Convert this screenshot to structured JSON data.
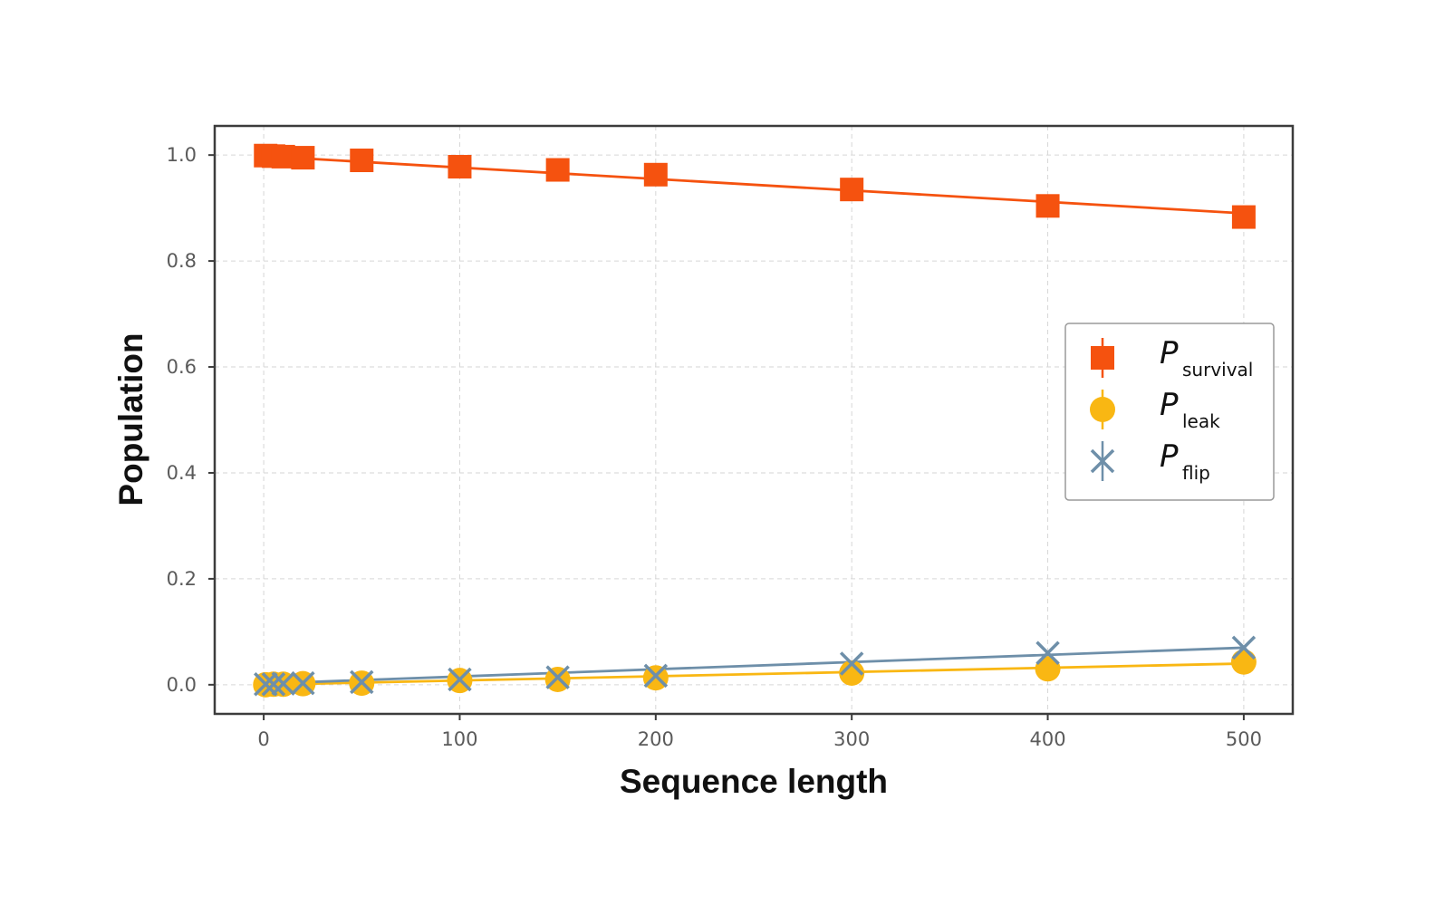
{
  "chart_data": {
    "type": "line",
    "xlabel": "Sequence length",
    "ylabel": "Population",
    "xlim": [
      -25,
      525
    ],
    "ylim": [
      -0.055,
      1.055
    ],
    "xticks": [
      0,
      100,
      200,
      300,
      400,
      500
    ],
    "xtick_labels": [
      "0",
      "100",
      "200",
      "300",
      "400",
      "500"
    ],
    "yticks": [
      0.0,
      0.2,
      0.4,
      0.6,
      0.8,
      1.0
    ],
    "ytick_labels": [
      "0.0",
      "0.2",
      "0.4",
      "0.6",
      "0.8",
      "1.0"
    ],
    "grid": true,
    "legend_position": "center-right",
    "series": [
      {
        "name": "P",
        "subscript": "survival",
        "marker": "square",
        "color": "#F5520F",
        "x": [
          1,
          5,
          10,
          20,
          50,
          100,
          150,
          200,
          300,
          400,
          500
        ],
        "y": [
          0.999,
          0.998,
          0.997,
          0.995,
          0.99,
          0.978,
          0.972,
          0.963,
          0.935,
          0.904,
          0.883
        ],
        "fit": [
          [
            0,
            0.998
          ],
          [
            500,
            0.89
          ]
        ]
      },
      {
        "name": "P",
        "subscript": "leak",
        "marker": "circle",
        "color": "#F9B713",
        "x": [
          1,
          5,
          10,
          20,
          50,
          100,
          150,
          200,
          300,
          400,
          500
        ],
        "y": [
          0.0,
          0.001,
          0.001,
          0.002,
          0.003,
          0.008,
          0.01,
          0.013,
          0.022,
          0.03,
          0.043
        ],
        "fit": [
          [
            0,
            0.0
          ],
          [
            500,
            0.04
          ]
        ]
      },
      {
        "name": "P",
        "subscript": "flip",
        "marker": "x",
        "color": "#6E8FA9",
        "x": [
          1,
          5,
          10,
          20,
          50,
          100,
          150,
          200,
          300,
          400,
          500
        ],
        "y": [
          0.001,
          0.001,
          0.002,
          0.003,
          0.005,
          0.01,
          0.014,
          0.017,
          0.04,
          0.06,
          0.07
        ],
        "fit": [
          [
            0,
            0.002
          ],
          [
            500,
            0.07
          ]
        ]
      }
    ]
  }
}
